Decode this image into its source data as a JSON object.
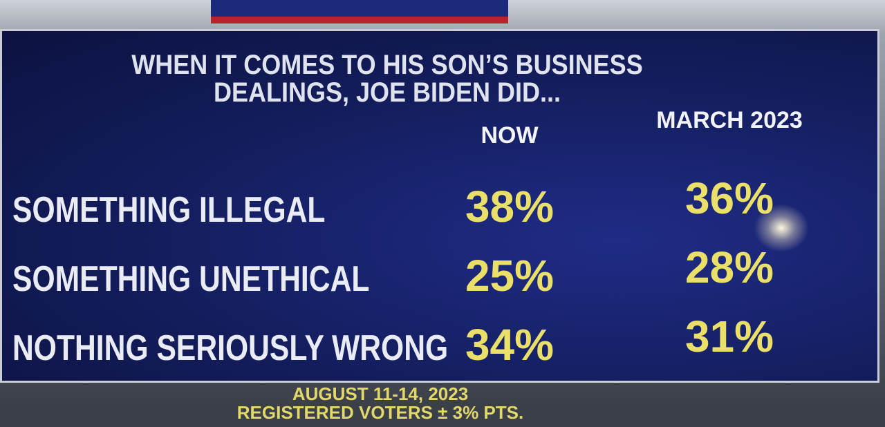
{
  "title": {
    "lines": [
      "WHEN IT COMES TO HIS SON’S BUSINESS",
      "DEALINGS, JOE BIDEN DID..."
    ]
  },
  "table": {
    "columns": [
      "NOW",
      "MARCH 2023"
    ],
    "rows": [
      {
        "label": "SOMETHING ILLEGAL",
        "values": [
          "38%",
          "36%"
        ]
      },
      {
        "label": "SOMETHING UNETHICAL",
        "values": [
          "25%",
          "28%"
        ]
      },
      {
        "label": "NOTHING SERIOUSLY WRONG",
        "values": [
          "34%",
          "31%"
        ]
      }
    ]
  },
  "footer": {
    "lines": [
      "AUGUST 11-14, 2023",
      "REGISTERED VOTERS ± 3% PTS."
    ]
  }
}
